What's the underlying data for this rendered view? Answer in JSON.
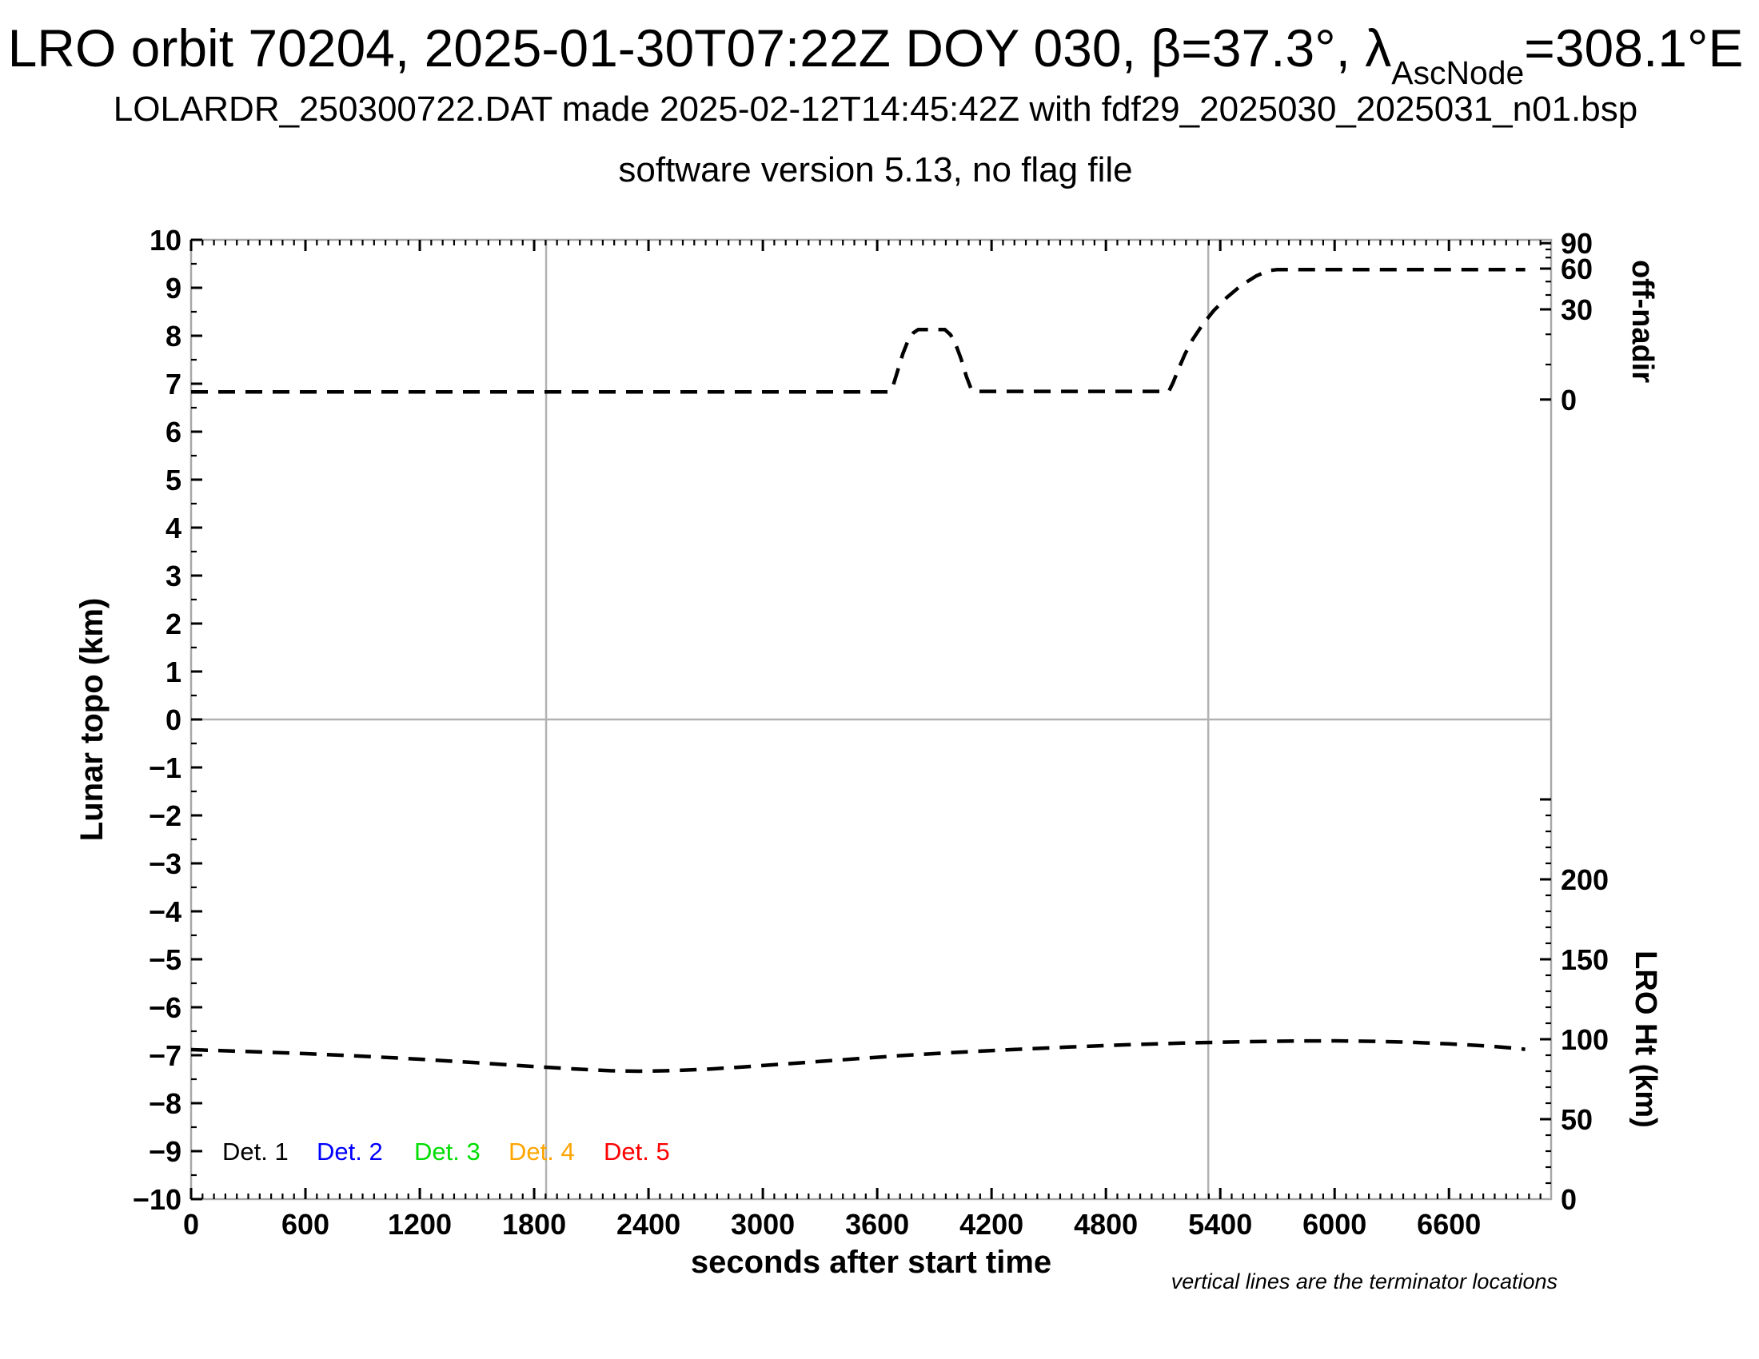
{
  "header": {
    "title_prefix": "LRO orbit 70204, 2025-01-30T07:22Z DOY 030, β=37.3°, λ",
    "title_sub": "AscNode",
    "title_suffix": "=308.1°E",
    "line2": "LOLARDR_250300722.DAT made 2025-02-12T14:45:42Z with fdf29_2025030_2025031_n01.bsp",
    "line3": "software version 5.13, no flag file"
  },
  "note": {
    "text": "vertical lines are the terminator locations"
  },
  "colors": {
    "axis_box": "#a8a8a8",
    "grid_line": "#b2b2b2",
    "tick": "#000000",
    "curve": "#000000"
  },
  "chart_data": {
    "type": "line",
    "x_axis": {
      "label": "seconds after start time",
      "min": 0,
      "max": 7136,
      "major_tick_step": 600,
      "minor_tick_step": 60,
      "tick_labels": [
        "0",
        "600",
        "1200",
        "1800",
        "2400",
        "3000",
        "3600",
        "4200",
        "4800",
        "5400",
        "6000",
        "6600"
      ]
    },
    "y_left_axis": {
      "label": "Lunar topo (km)",
      "min": -10,
      "max": 10,
      "major_tick_step": 1,
      "minor_tick_step": 0.5,
      "tick_labels": [
        "10",
        "9",
        "8",
        "7",
        "6",
        "5",
        "4",
        "3",
        "2",
        "1",
        "0",
        "−1",
        "−2",
        "−3",
        "−4",
        "−5",
        "−6",
        "−7",
        "−8",
        "−9",
        "−10"
      ]
    },
    "y_right_top_axis": {
      "label": "off-nadir",
      "units": "degrees",
      "scale": "nonlinear (sine-compressed near 90)",
      "major_ticks_deg": [
        90,
        60,
        30,
        0
      ],
      "tick_labels": [
        "90",
        "60",
        "30",
        "0"
      ],
      "major_tick_y_fractions_of_topo_scale": [
        9.93,
        9.4,
        8.55,
        6.67
      ],
      "minor_ticks_deg": [
        80,
        70,
        50,
        40,
        20,
        10
      ],
      "minor_tick_y_fractions_of_topo_scale": [
        9.8,
        9.63,
        9.13,
        8.85,
        8.03,
        7.4
      ]
    },
    "y_right_bottom_axis": {
      "label": "LRO Ht (km)",
      "min": 0,
      "max": 250,
      "major_tick_step": 50,
      "minor_tick_step": 10,
      "tick_labels": [
        "200",
        "150",
        "100",
        "50",
        "0"
      ],
      "major_tick_values": [
        200,
        150,
        100,
        50,
        0
      ]
    },
    "zero_line_topo_km": 0,
    "terminator_lines_seconds": [
      1863,
      5337
    ],
    "series": [
      {
        "name": "spacecraft off-nadir pointing profile (all detectors overlapped)",
        "color": "#000000",
        "style": "dashed",
        "units": "plotted against left axis scale (Lunar topo km equivalent)",
        "approx_off_nadir_deg": {
          "initial_flat": 3,
          "bump_peak": 27,
          "final_flat": 58
        },
        "points": [
          [
            0,
            6.83
          ],
          [
            3663,
            6.83
          ],
          [
            3685,
            6.98
          ],
          [
            3708,
            7.28
          ],
          [
            3734,
            7.62
          ],
          [
            3762,
            7.9
          ],
          [
            3790,
            8.06
          ],
          [
            3815,
            8.13
          ],
          [
            3955,
            8.13
          ],
          [
            3985,
            8.02
          ],
          [
            4012,
            7.82
          ],
          [
            4040,
            7.52
          ],
          [
            4068,
            7.15
          ],
          [
            4092,
            6.9
          ],
          [
            4107,
            6.84
          ],
          [
            5130,
            6.84
          ],
          [
            5152,
            7.02
          ],
          [
            5180,
            7.3
          ],
          [
            5215,
            7.62
          ],
          [
            5255,
            7.92
          ],
          [
            5305,
            8.22
          ],
          [
            5365,
            8.52
          ],
          [
            5435,
            8.8
          ],
          [
            5510,
            9.05
          ],
          [
            5590,
            9.25
          ],
          [
            5655,
            9.36
          ],
          [
            5700,
            9.38
          ],
          [
            7000,
            9.38
          ]
        ]
      },
      {
        "name": "LRO height above surface",
        "color": "#000000",
        "style": "dashed",
        "units": "km (right LRO Ht axis)",
        "points": [
          [
            0,
            93.5
          ],
          [
            300,
            92.3
          ],
          [
            600,
            91.0
          ],
          [
            900,
            89.4
          ],
          [
            1200,
            87.5
          ],
          [
            1500,
            85.3
          ],
          [
            1800,
            82.9
          ],
          [
            2000,
            81.5
          ],
          [
            2200,
            80.3
          ],
          [
            2350,
            80.0
          ],
          [
            2500,
            80.3
          ],
          [
            2700,
            81.2
          ],
          [
            2900,
            82.7
          ],
          [
            3100,
            84.4
          ],
          [
            3400,
            87.0
          ],
          [
            3700,
            89.6
          ],
          [
            4000,
            91.7
          ],
          [
            4300,
            93.5
          ],
          [
            4600,
            95.1
          ],
          [
            4900,
            96.5
          ],
          [
            5200,
            97.6
          ],
          [
            5500,
            98.4
          ],
          [
            5800,
            98.9
          ],
          [
            6000,
            99.0
          ],
          [
            6200,
            98.7
          ],
          [
            6400,
            98.1
          ],
          [
            6600,
            97.1
          ],
          [
            6800,
            95.8
          ],
          [
            6950,
            94.3
          ],
          [
            7000,
            93.7
          ]
        ]
      }
    ],
    "legend": [
      {
        "label": "Det. 1",
        "color": "#000000"
      },
      {
        "label": "Det. 2",
        "color": "#0000ff"
      },
      {
        "label": "Det. 3",
        "color": "#00dd00"
      },
      {
        "label": "Det. 4",
        "color": "#ffa500"
      },
      {
        "label": "Det. 5",
        "color": "#ff0000"
      }
    ]
  }
}
